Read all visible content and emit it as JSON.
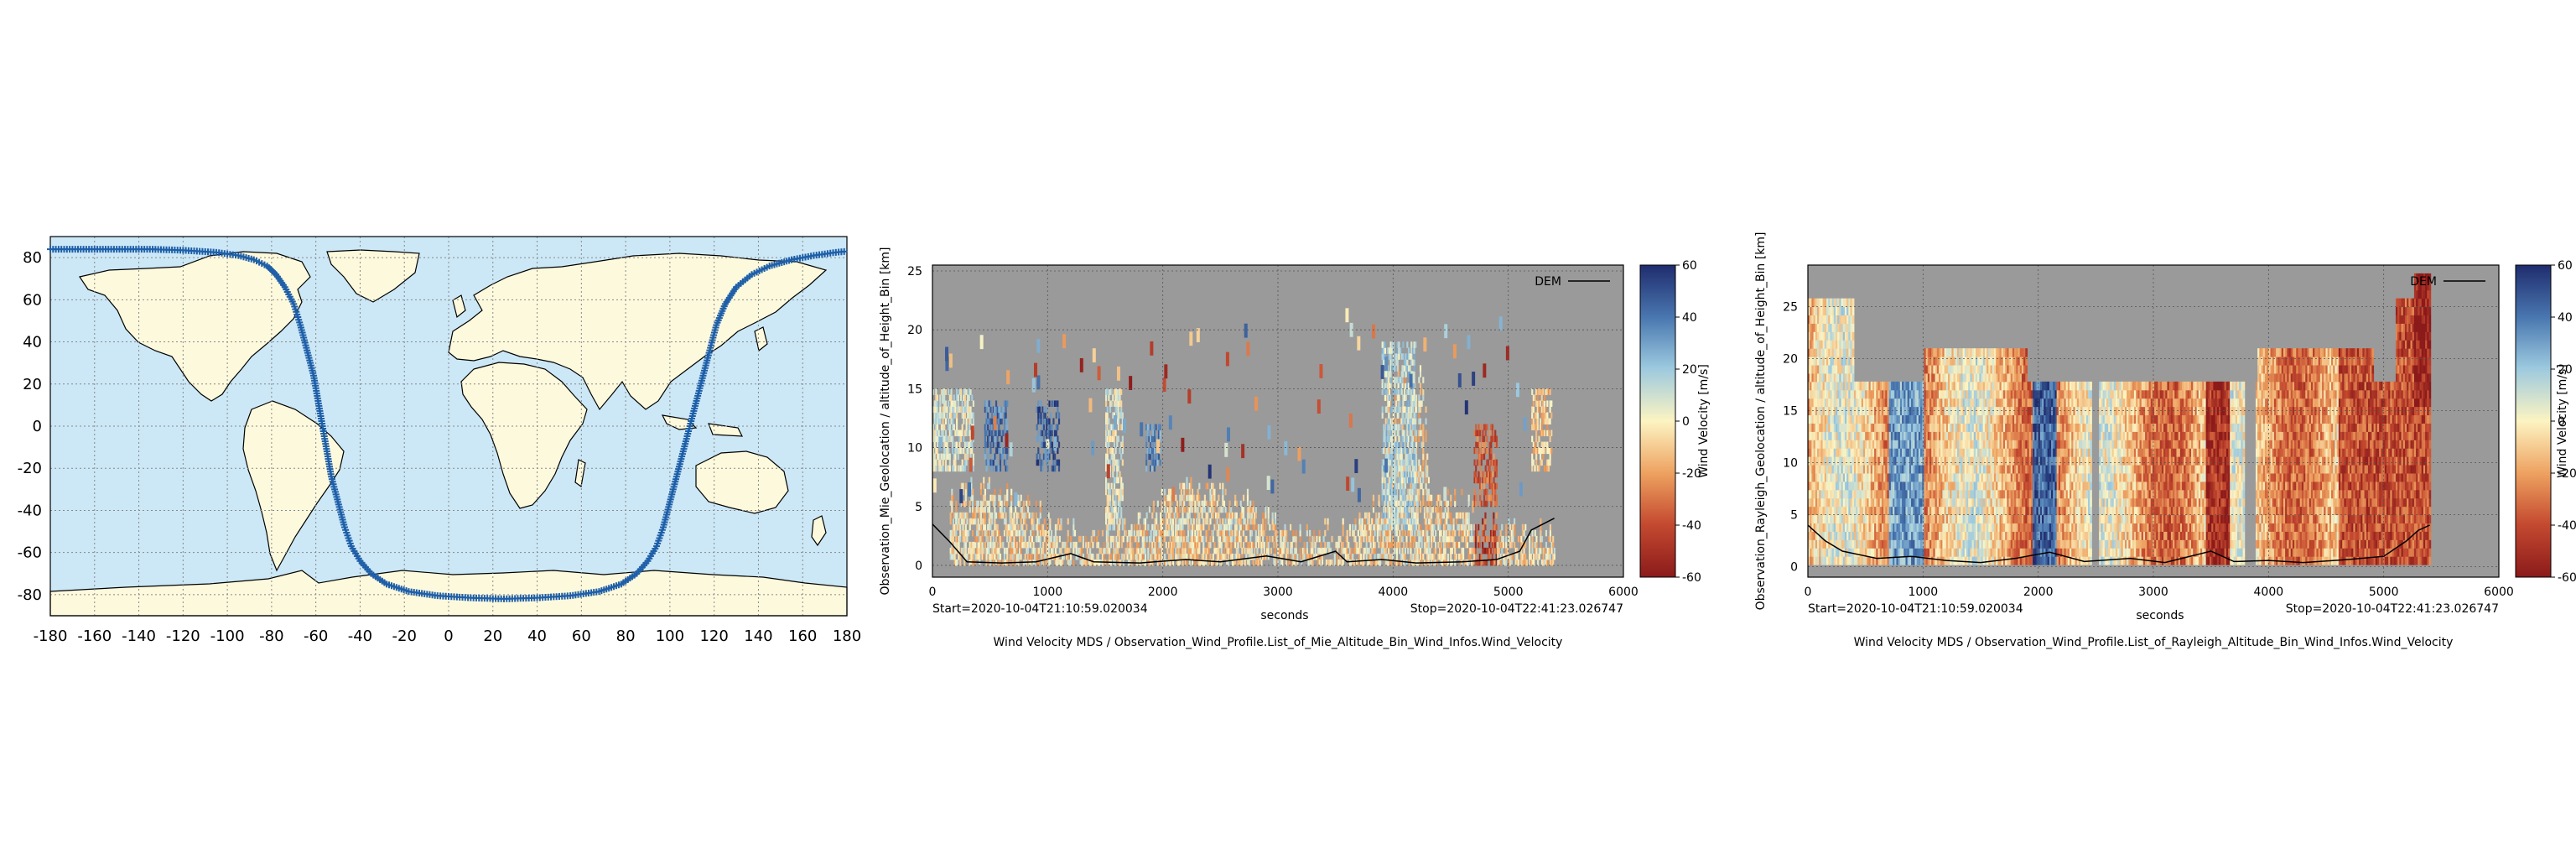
{
  "chart_data": [
    {
      "type": "scatter",
      "panel": "map",
      "xlim": [
        -180,
        180
      ],
      "ylim": [
        -90,
        90
      ],
      "x_ticks": [
        "-180",
        "-160",
        "-140",
        "-120",
        "-100",
        "-80",
        "-60",
        "-40",
        "-20",
        "0",
        "20",
        "40",
        "60",
        "80",
        "100",
        "120",
        "140",
        "160",
        "180"
      ],
      "y_ticks": [
        "80",
        "60",
        "40",
        "20",
        "0",
        "-20",
        "-40",
        "-60",
        "-80"
      ],
      "grid": true,
      "colors": {
        "ocean": "#cce8f7",
        "land": "#fdf9dd",
        "track": "#1f5fa8"
      },
      "series": [
        {
          "marker": "+",
          "points": [
            [
              -180,
              84
            ],
            [
              -165,
              84
            ],
            [
              -150,
              84
            ],
            [
              -135,
              84
            ],
            [
              -120,
              83.5
            ],
            [
              -105,
              82.5
            ],
            [
              -95,
              81
            ],
            [
              -88,
              79
            ],
            [
              -82,
              76
            ],
            [
              -78,
              72
            ],
            [
              -74,
              66
            ],
            [
              -70,
              58
            ],
            [
              -67,
              48
            ],
            [
              -64,
              36
            ],
            [
              -61,
              24
            ],
            [
              -59,
              12
            ],
            [
              -57,
              0
            ],
            [
              -55,
              -12
            ],
            [
              -53,
              -24
            ],
            [
              -50,
              -36
            ],
            [
              -47,
              -48
            ],
            [
              -44,
              -57
            ],
            [
              -40,
              -64
            ],
            [
              -35,
              -70
            ],
            [
              -28,
              -75
            ],
            [
              -18,
              -78.5
            ],
            [
              -5,
              -80.5
            ],
            [
              10,
              -81.5
            ],
            [
              25,
              -82
            ],
            [
              40,
              -81.5
            ],
            [
              55,
              -80.5
            ],
            [
              68,
              -78.5
            ],
            [
              78,
              -75
            ],
            [
              85,
              -70
            ],
            [
              90,
              -64
            ],
            [
              94,
              -57
            ],
            [
              97,
              -48
            ],
            [
              100,
              -36
            ],
            [
              103,
              -24
            ],
            [
              106,
              -12
            ],
            [
              109,
              0
            ],
            [
              112,
              12
            ],
            [
              115,
              24
            ],
            [
              118,
              36
            ],
            [
              121,
              48
            ],
            [
              125,
              58
            ],
            [
              130,
              66
            ],
            [
              137,
              72
            ],
            [
              145,
              76
            ],
            [
              155,
              79
            ],
            [
              165,
              81
            ],
            [
              175,
              82.5
            ],
            [
              180,
              83
            ]
          ]
        }
      ]
    },
    {
      "type": "heatmap",
      "panel": "mie",
      "xlim": [
        0,
        6000
      ],
      "ylim": [
        -1,
        25.5
      ],
      "x_ticks": [
        "0",
        "1000",
        "2000",
        "3000",
        "4000",
        "5000",
        "6000"
      ],
      "y_ticks": [
        "25",
        "20",
        "15",
        "10",
        "5",
        "0"
      ],
      "xlabel": "seconds",
      "ylabel": "Observation_Mie_Geolocation / altitude_of_Height_Bin [km]",
      "start_label": "Start=2020-10-04T21:10:59.020034",
      "stop_label": "Stop=2020-10-04T22:41:23.026747",
      "caption": "Wind Velocity MDS / Observation_Wind_Profile.List_of_Mie_Altitude_Bin_Wind_Infos.Wind_Velocity",
      "legend": {
        "entry": "DEM",
        "position": "top-right"
      },
      "colorbar": {
        "label": "Wind Velocity [m/s]",
        "ticks": [
          "60",
          "40",
          "20",
          "0",
          "-20",
          "-40",
          "-60"
        ],
        "range": [
          -60,
          60
        ]
      },
      "colors": {
        "background": "#9a9a9a",
        "dem": "#000000"
      },
      "dem": [
        [
          0,
          3.5
        ],
        [
          150,
          2.0
        ],
        [
          300,
          0.3
        ],
        [
          600,
          0.2
        ],
        [
          900,
          0.3
        ],
        [
          1200,
          1.0
        ],
        [
          1400,
          0.3
        ],
        [
          1800,
          0.2
        ],
        [
          2200,
          0.5
        ],
        [
          2500,
          0.3
        ],
        [
          2900,
          0.8
        ],
        [
          3200,
          0.3
        ],
        [
          3500,
          1.2
        ],
        [
          3600,
          0.3
        ],
        [
          3900,
          0.5
        ],
        [
          4200,
          0.2
        ],
        [
          4600,
          0.3
        ],
        [
          4900,
          0.5
        ],
        [
          5100,
          1.2
        ],
        [
          5200,
          3.0
        ],
        [
          5300,
          3.5
        ],
        [
          5400,
          4.0
        ]
      ]
    },
    {
      "type": "heatmap",
      "panel": "rayleigh",
      "xlim": [
        0,
        6000
      ],
      "ylim": [
        -1,
        29
      ],
      "x_ticks": [
        "0",
        "1000",
        "2000",
        "3000",
        "4000",
        "5000",
        "6000"
      ],
      "y_ticks": [
        "25",
        "20",
        "15",
        "10",
        "5",
        "0"
      ],
      "xlabel": "seconds",
      "ylabel": "Observation_Rayleigh_Geolocation / altitude_of_Height_Bin [km]",
      "start_label": "Start=2020-10-04T21:10:59.020034",
      "stop_label": "Stop=2020-10-04T22:41:23.026747",
      "caption": "Wind Velocity MDS / Observation_Wind_Profile.List_of_Rayleigh_Altitude_Bin_Wind_Infos.Wind_Velocity",
      "legend": {
        "entry": "DEM",
        "position": "top-right"
      },
      "colorbar": {
        "label": "Wind Velocity [m/s]",
        "ticks": [
          "60",
          "40",
          "20",
          "0",
          "-20",
          "-40",
          "-60"
        ],
        "range": [
          -60,
          60
        ]
      },
      "colors": {
        "background": "#9a9a9a",
        "dem": "#000000"
      },
      "dem": [
        [
          0,
          4.0
        ],
        [
          150,
          2.5
        ],
        [
          300,
          1.5
        ],
        [
          600,
          0.8
        ],
        [
          900,
          1.0
        ],
        [
          1200,
          0.6
        ],
        [
          1500,
          0.4
        ],
        [
          1800,
          0.8
        ],
        [
          2100,
          1.4
        ],
        [
          2400,
          0.5
        ],
        [
          2800,
          0.8
        ],
        [
          3100,
          0.4
        ],
        [
          3500,
          1.5
        ],
        [
          3700,
          0.5
        ],
        [
          4000,
          0.6
        ],
        [
          4300,
          0.4
        ],
        [
          4700,
          0.7
        ],
        [
          5000,
          1.0
        ],
        [
          5200,
          2.5
        ],
        [
          5300,
          3.5
        ],
        [
          5400,
          4.0
        ]
      ],
      "top_profile": [
        [
          0,
          25.5
        ],
        [
          400,
          25.5
        ],
        [
          400,
          17.5
        ],
        [
          1000,
          17.5
        ],
        [
          1000,
          20.5
        ],
        [
          1900,
          20.5
        ],
        [
          1900,
          17.5
        ],
        [
          3900,
          17.5
        ],
        [
          3900,
          20.5
        ],
        [
          4900,
          20.5
        ],
        [
          4900,
          17.5
        ],
        [
          5100,
          17.5
        ],
        [
          5100,
          25.5
        ],
        [
          5250,
          27.5
        ],
        [
          5400,
          25.5
        ]
      ]
    }
  ]
}
